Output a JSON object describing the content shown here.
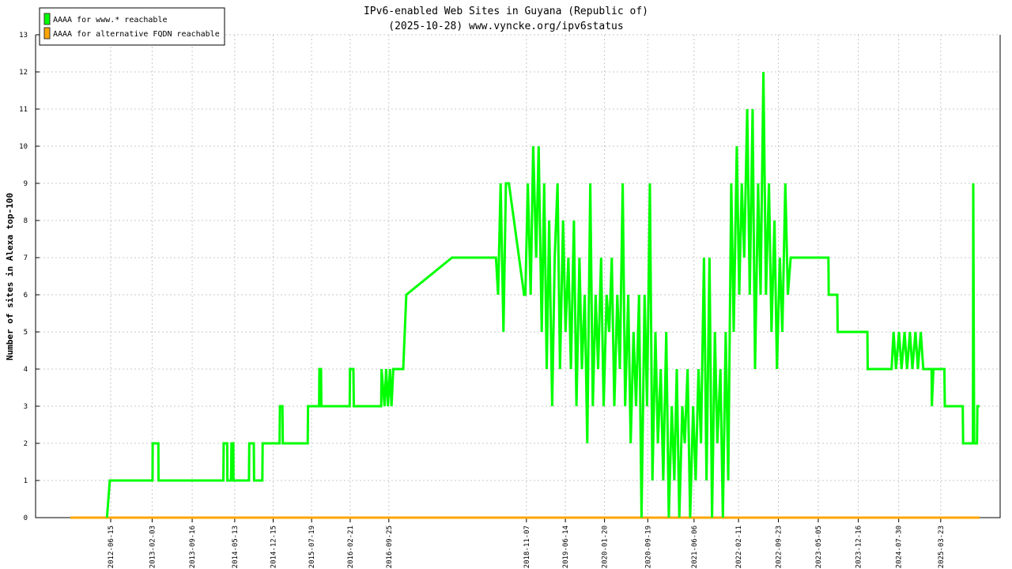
{
  "chart_data": {
    "type": "line",
    "title": "IPv6-enabled Web Sites in Guyana (Republic of)",
    "subtitle": "(2025-10-28) www.vyncke.org/ipv6status",
    "y_label": "Number of sites in Alexa top-100",
    "xlim": [
      "2011-04-20",
      "2026-02-20"
    ],
    "ylim": [
      0,
      13
    ],
    "yticks": [
      0,
      1,
      2,
      3,
      4,
      5,
      6,
      7,
      8,
      9,
      10,
      11,
      12,
      13
    ],
    "xticks": [
      "2012-06-15",
      "2013-02-03",
      "2013-09-16",
      "2014-05-13",
      "2014-12-15",
      "2015-07-19",
      "2016-02-21",
      "2016-09-25",
      "2018-11-07",
      "2019-06-14",
      "2020-01-20",
      "2020-09-19",
      "2021-06-06",
      "2022-02-11",
      "2022-09-23",
      "2023-05-05",
      "2023-12-16",
      "2024-07-30",
      "2025-03-23"
    ],
    "grid": true,
    "legend": "top-left",
    "series": [
      {
        "name": "AAAA for www.* reachable",
        "color": "#00ff00",
        "x": [
          "2012-05-25",
          "2012-06-10",
          "2013-02-05",
          "2013-02-06",
          "2013-03-10",
          "2013-03-11",
          "2014-03-10",
          "2014-03-12",
          "2014-04-01",
          "2014-04-02",
          "2014-04-22",
          "2014-04-25",
          "2014-05-05",
          "2014-05-06",
          "2014-08-01",
          "2014-08-03",
          "2014-08-28",
          "2014-08-30",
          "2014-10-15",
          "2014-10-17",
          "2015-01-20",
          "2015-01-22",
          "2015-02-05",
          "2015-02-07",
          "2015-06-27",
          "2015-06-29",
          "2015-08-30",
          "2015-09-01",
          "2015-09-10",
          "2015-09-12",
          "2016-02-18",
          "2016-02-20",
          "2016-03-10",
          "2016-03-12",
          "2016-08-13",
          "2016-08-15",
          "2016-09-01",
          "2016-09-10",
          "2016-09-20",
          "2016-10-01",
          "2016-10-10",
          "2016-10-20",
          "2016-12-15",
          "2017-01-01",
          "2017-09-15",
          "2018-05-20",
          "2018-06-01",
          "2018-06-15",
          "2018-07-01",
          "2018-07-15",
          "2018-08-01",
          "2018-10-25",
          "2018-11-01",
          "2018-11-15",
          "2018-12-01",
          "2018-12-15",
          "2019-01-01",
          "2019-01-15",
          "2019-02-01",
          "2019-02-15",
          "2019-03-01",
          "2019-03-15",
          "2019-04-01",
          "2019-04-15",
          "2019-05-01",
          "2019-05-15",
          "2019-06-01",
          "2019-06-15",
          "2019-07-01",
          "2019-07-15",
          "2019-08-01",
          "2019-08-15",
          "2019-09-01",
          "2019-09-15",
          "2019-10-01",
          "2019-10-15",
          "2019-11-01",
          "2019-11-15",
          "2019-12-01",
          "2019-12-15",
          "2020-01-01",
          "2020-01-15",
          "2020-02-01",
          "2020-02-15",
          "2020-03-01",
          "2020-03-15",
          "2020-04-01",
          "2020-04-15",
          "2020-05-01",
          "2020-05-15",
          "2020-06-01",
          "2020-06-15",
          "2020-07-01",
          "2020-07-15",
          "2020-08-01",
          "2020-08-15",
          "2020-09-01",
          "2020-09-15",
          "2020-10-01",
          "2020-10-15",
          "2020-11-01",
          "2020-11-15",
          "2020-12-01",
          "2020-12-15",
          "2021-01-01",
          "2021-01-15",
          "2021-02-01",
          "2021-02-15",
          "2021-03-01",
          "2021-03-15",
          "2021-04-01",
          "2021-04-15",
          "2021-05-01",
          "2021-05-15",
          "2021-06-01",
          "2021-06-15",
          "2021-07-01",
          "2021-07-15",
          "2021-08-01",
          "2021-08-15",
          "2021-09-01",
          "2021-09-15",
          "2021-10-01",
          "2021-10-15",
          "2021-11-01",
          "2021-11-15",
          "2021-12-01",
          "2021-12-15",
          "2022-01-01",
          "2022-01-15",
          "2022-02-01",
          "2022-02-15",
          "2022-03-01",
          "2022-03-15",
          "2022-04-01",
          "2022-04-15",
          "2022-05-01",
          "2022-05-15",
          "2022-06-01",
          "2022-06-15",
          "2022-07-01",
          "2022-07-15",
          "2022-08-01",
          "2022-08-15",
          "2022-09-01",
          "2022-09-15",
          "2022-10-01",
          "2022-10-15",
          "2022-11-01",
          "2022-11-15",
          "2022-12-01",
          "2023-01-01",
          "2023-07-01",
          "2023-07-03",
          "2023-08-20",
          "2023-08-22",
          "2024-02-05",
          "2024-02-07",
          "2024-06-20",
          "2024-07-01",
          "2024-07-15",
          "2024-08-01",
          "2024-08-15",
          "2024-09-01",
          "2024-09-15",
          "2024-10-01",
          "2024-10-15",
          "2024-11-01",
          "2024-11-15",
          "2024-12-01",
          "2024-12-15",
          "2025-01-31",
          "2025-02-01",
          "2025-02-10",
          "2025-04-13",
          "2025-04-15",
          "2025-07-25",
          "2025-07-27",
          "2025-09-20",
          "2025-09-22",
          "2025-09-27",
          "2025-10-13",
          "2025-10-15",
          "2025-10-28"
        ],
        "values": [
          0,
          1,
          1,
          2,
          2,
          1,
          1,
          2,
          2,
          1,
          1,
          2,
          2,
          1,
          1,
          2,
          2,
          1,
          1,
          2,
          2,
          3,
          3,
          2,
          2,
          3,
          3,
          4,
          4,
          3,
          3,
          4,
          4,
          3,
          3,
          4,
          3,
          4,
          3,
          4,
          3,
          4,
          4,
          6,
          7,
          7,
          6,
          9,
          5,
          9,
          9,
          6,
          6,
          9,
          6,
          10,
          7,
          10,
          5,
          9,
          4,
          8,
          3,
          7,
          9,
          4,
          8,
          5,
          7,
          4,
          8,
          3,
          7,
          4,
          6,
          2,
          9,
          3,
          6,
          4,
          7,
          3,
          6,
          5,
          7,
          3,
          6,
          4,
          9,
          3,
          6,
          2,
          5,
          3,
          6,
          0,
          6,
          3,
          9,
          1,
          5,
          2,
          4,
          1,
          5,
          0,
          3,
          1,
          4,
          0,
          3,
          2,
          4,
          0,
          3,
          1,
          4,
          2,
          7,
          1,
          7,
          0,
          5,
          2,
          4,
          0,
          5,
          1,
          9,
          5,
          10,
          6,
          9,
          7,
          11,
          6,
          11,
          4,
          9,
          6,
          12,
          6,
          9,
          5,
          8,
          4,
          7,
          5,
          9,
          6,
          7,
          7,
          7,
          6,
          6,
          5,
          5,
          4,
          4,
          5,
          4,
          5,
          4,
          5,
          4,
          5,
          4,
          5,
          4,
          5,
          4,
          4,
          3,
          4,
          4,
          3,
          3,
          2,
          2,
          9,
          2,
          2,
          3,
          3
        ]
      },
      {
        "name": "AAAA for alternative FQDN reachable",
        "color": "#ffa500",
        "x": [
          "2011-11-01",
          "2025-10-28"
        ],
        "values": [
          0,
          0
        ]
      }
    ]
  }
}
